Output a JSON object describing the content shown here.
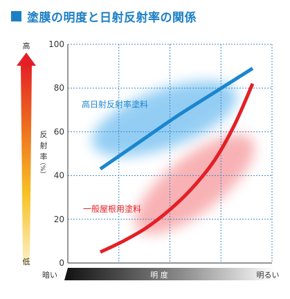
{
  "header": {
    "title": "塗膜の明度と日射反射率の関係"
  },
  "left_scale": {
    "high_label": "高",
    "low_label": "低",
    "axis_label_chars": [
      "反",
      "射",
      "率",
      "（%）"
    ]
  },
  "bottom_scale": {
    "dark_label": "暗い",
    "center_label": "明 度",
    "light_label": "明るい"
  },
  "colors": {
    "title": "#1b7fc4",
    "high_reflect_line": "#1a86cf",
    "general_line": "#e41f26",
    "grid": "#3f88c8",
    "axis": "#555555"
  },
  "chart_data": {
    "type": "line",
    "title": "塗膜の明度と日射反射率の関係",
    "xlabel": "明 度",
    "ylabel": "反射率（%）",
    "ylim": [
      0,
      100
    ],
    "yticks": [
      0,
      20,
      40,
      60,
      80,
      100
    ],
    "x_range_labels": [
      "暗い",
      "明るい"
    ],
    "grid": true,
    "series": [
      {
        "name": "高日射反射率塗料",
        "color": "#1a86cf",
        "points": [
          [
            0.0,
            43
          ],
          [
            0.25,
            55
          ],
          [
            0.5,
            67
          ],
          [
            0.75,
            78
          ],
          [
            1.0,
            89
          ]
        ]
      },
      {
        "name": "一般屋根用塗料",
        "color": "#e41f26",
        "points": [
          [
            0.0,
            5
          ],
          [
            0.15,
            10
          ],
          [
            0.3,
            16
          ],
          [
            0.45,
            24
          ],
          [
            0.6,
            34
          ],
          [
            0.75,
            47
          ],
          [
            0.88,
            63
          ],
          [
            1.0,
            82
          ]
        ]
      }
    ]
  }
}
